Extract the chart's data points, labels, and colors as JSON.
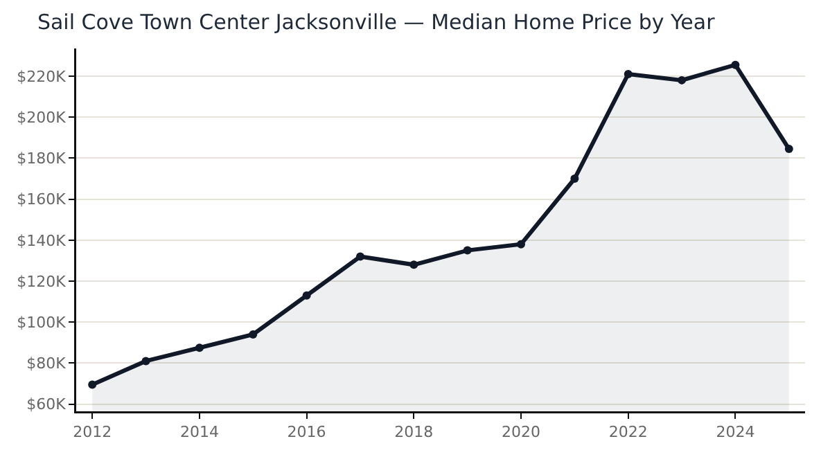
{
  "chart_data": {
    "type": "area",
    "title": "Sail Cove Town Center Jacksonville — Median Home Price by Year",
    "x": [
      2012,
      2013,
      2014,
      2015,
      2016,
      2017,
      2018,
      2019,
      2020,
      2021,
      2022,
      2023,
      2024,
      2025
    ],
    "series": [
      {
        "color": "#111827",
        "values": [
          69500,
          81000,
          87500,
          94000,
          113000,
          132000,
          128000,
          135000,
          138000,
          170000,
          221000,
          218000,
          225500,
          184500
        ]
      }
    ],
    "xlim": [
      2011.7,
      2025.3
    ],
    "xticks": [
      2012,
      2014,
      2016,
      2018,
      2020,
      2022,
      2024
    ],
    "ylim": [
      56500,
      233500
    ],
    "yticks": [
      {
        "value": 60000,
        "label": "$60K"
      },
      {
        "value": 80000,
        "label": "$80K"
      },
      {
        "value": 100000,
        "label": "$100K"
      },
      {
        "value": 120000,
        "label": "$120K"
      },
      {
        "value": 140000,
        "label": "$140K"
      },
      {
        "value": 160000,
        "label": "$160K"
      },
      {
        "value": 180000,
        "label": "$180K"
      },
      {
        "value": 200000,
        "label": "$200K"
      },
      {
        "value": 220000,
        "label": "$220K"
      }
    ],
    "grid": "y",
    "marker": "circle",
    "line_style": "solid"
  }
}
